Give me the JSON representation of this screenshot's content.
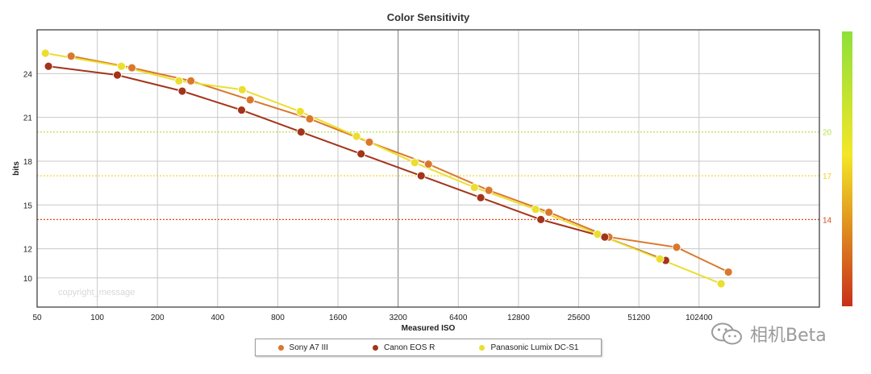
{
  "chart_data": {
    "type": "line",
    "title": "Color Sensitivity",
    "xlabel": "Measured ISO",
    "ylabel": "bits",
    "x_scale": "log2",
    "xlim": [
      50,
      409600
    ],
    "ylim": [
      8,
      27
    ],
    "x_ticks": [
      50,
      100,
      200,
      400,
      800,
      1600,
      3200,
      6400,
      12800,
      25600,
      51200,
      102400
    ],
    "x_tick_labels": [
      "50",
      "100",
      "200",
      "400",
      "800",
      "1600",
      "3200",
      "6400",
      "12800",
      "25600",
      "51200",
      "102400"
    ],
    "y_ticks": [
      10,
      12,
      15,
      18,
      21,
      24
    ],
    "y_tick_labels": [
      "10",
      "12",
      "15",
      "18",
      "21",
      "24"
    ],
    "reference_lines": [
      {
        "value": 20,
        "label": "20",
        "color": "#b8e04a"
      },
      {
        "value": 17,
        "label": "17",
        "color": "#f2d020"
      },
      {
        "value": 14,
        "label": "14",
        "color": "#d84a1c"
      }
    ],
    "colorbar": {
      "top_color": "#8ee03a",
      "mid_color": "#f4e628",
      "bottom_color": "#c8301a"
    },
    "series": [
      {
        "name": "Sony A7 III",
        "color": "#d9782d",
        "x": [
          74,
          149,
          294,
          582,
          1156,
          2296,
          4536,
          9096,
          18172,
          36292,
          79100,
          143600
        ],
        "y": [
          25.2,
          24.4,
          23.5,
          22.2,
          20.9,
          19.3,
          17.8,
          16.0,
          14.5,
          12.8,
          12.1,
          10.4
        ]
      },
      {
        "name": "Canon EOS R",
        "color": "#a3341a",
        "x": [
          57,
          126,
          266,
          527,
          1046,
          2087,
          4172,
          8285,
          16560,
          34570,
          69700
        ],
        "y": [
          24.5,
          23.9,
          22.8,
          21.5,
          20.0,
          18.5,
          17.0,
          15.5,
          14.0,
          12.8,
          11.2
        ]
      },
      {
        "name": "Panasonic Lumix DC-S1",
        "color": "#ecde2e",
        "x": [
          55,
          132,
          256,
          531,
          1036,
          1982,
          3875,
          7708,
          15584,
          31800,
          65200,
          132000
        ],
        "y": [
          25.4,
          24.5,
          23.5,
          22.9,
          21.4,
          19.7,
          17.9,
          16.2,
          14.7,
          13.0,
          11.3,
          9.6
        ]
      }
    ]
  },
  "watermark": {
    "text": "相机Beta",
    "icon": "wechat-icon"
  },
  "copyright": "copyright_message"
}
